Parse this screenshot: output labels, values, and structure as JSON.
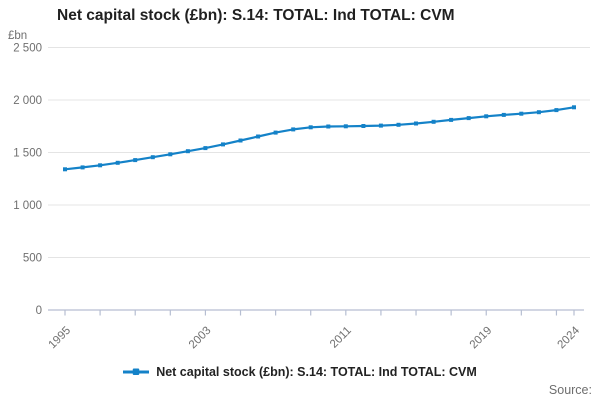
{
  "title": "Net capital stock (£bn): S.14: TOTAL: Ind TOTAL: CVM",
  "y_unit": "£bn",
  "source_label": "Source:",
  "legend": {
    "label": "Net capital stock (£bn): S.14: TOTAL: Ind TOTAL: CVM"
  },
  "colors": {
    "line": "#1482c8",
    "grid": "#e4e4e4",
    "axis": "#b6bed2",
    "muted_text": "#6f6f6f",
    "title_text": "#202020"
  },
  "chart_data": {
    "type": "line",
    "title": "Net capital stock (£bn): S.14: TOTAL: Ind TOTAL: CVM",
    "xlabel": "",
    "ylabel": "£bn",
    "ylim": [
      0,
      2500
    ],
    "yticks": [
      0,
      500,
      1000,
      1500,
      2000,
      2500
    ],
    "xticks": [
      1995,
      1997,
      1999,
      2001,
      2003,
      2005,
      2007,
      2009,
      2011,
      2013,
      2015,
      2017,
      2019,
      2021,
      2023,
      2024
    ],
    "xticks_labeled": [
      1995,
      2003,
      2011,
      2019,
      2024
    ],
    "grid": "horizontal",
    "legend_position": "bottom",
    "marker": "square",
    "x": [
      1995,
      1996,
      1997,
      1998,
      1999,
      2000,
      2001,
      2002,
      2003,
      2004,
      2005,
      2006,
      2007,
      2008,
      2009,
      2010,
      2011,
      2012,
      2013,
      2014,
      2015,
      2016,
      2017,
      2018,
      2019,
      2020,
      2021,
      2022,
      2023,
      2024
    ],
    "series": [
      {
        "name": "Net capital stock (£bn): S.14: TOTAL: Ind TOTAL: CVM",
        "values": [
          1340,
          1358,
          1378,
          1402,
          1428,
          1455,
          1483,
          1512,
          1542,
          1577,
          1614,
          1652,
          1690,
          1720,
          1740,
          1748,
          1750,
          1752,
          1756,
          1764,
          1776,
          1792,
          1810,
          1828,
          1845,
          1858,
          1870,
          1884,
          1904,
          1930
        ]
      }
    ]
  }
}
